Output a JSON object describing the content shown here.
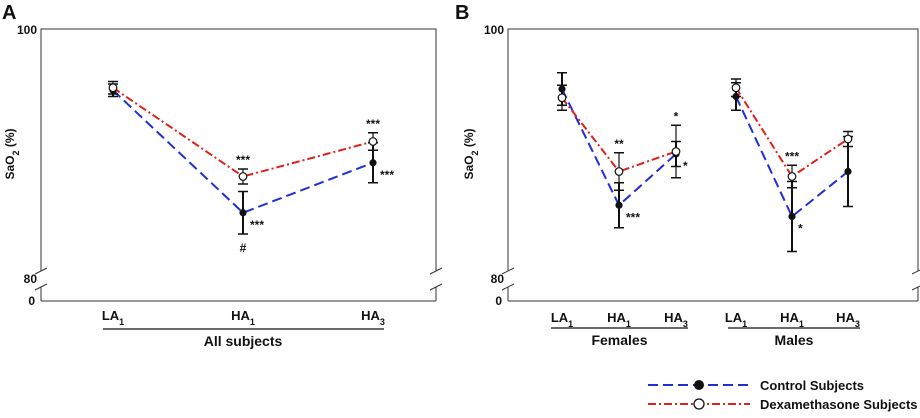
{
  "colors": {
    "control": "#1f2fd6",
    "dexamethasone": "#e0201b",
    "axis": "#333333",
    "text": "#111111"
  },
  "legend": {
    "control": "Control Subjects",
    "dexamethasone": "Dexamethasone Subjects"
  },
  "chart_data": [
    {
      "panel": "A",
      "type": "line",
      "ylabel_base": "SaO",
      "ylabel_sub": "2",
      "ylabel_tail": " (%)",
      "yticks": [
        "100",
        "80",
        "0"
      ],
      "ylim": [
        80,
        100
      ],
      "axis_break": true,
      "categories": [
        {
          "base": "LA",
          "sub": "1"
        },
        {
          "base": "HA",
          "sub": "1"
        },
        {
          "base": "HA",
          "sub": "3"
        }
      ],
      "group_label": "All subjects",
      "series": [
        {
          "name": "Control Subjects",
          "key": "control",
          "values": [
            95.1,
            85.3,
            89.3
          ],
          "err": [
            0.5,
            1.7,
            1.6
          ],
          "annotations": [
            {
              "index": 1,
              "text": "***",
              "pos": "right"
            },
            {
              "index": 1,
              "text": "#",
              "pos": "below"
            },
            {
              "index": 2,
              "text": "***",
              "pos": "right"
            }
          ]
        },
        {
          "name": "Dexamethasone Subjects",
          "key": "dexamethasone",
          "values": [
            95.3,
            88.2,
            91.0
          ],
          "err": [
            0.5,
            0.6,
            0.7
          ],
          "annotations": [
            {
              "index": 1,
              "text": "***",
              "pos": "above"
            },
            {
              "index": 2,
              "text": "***",
              "pos": "above"
            }
          ]
        }
      ]
    },
    {
      "panel": "B",
      "type": "line",
      "ylabel_base": "SaO",
      "ylabel_sub": "2",
      "ylabel_tail": " (%)",
      "yticks": [
        "100",
        "80",
        "0"
      ],
      "ylim": [
        80,
        100
      ],
      "axis_break": true,
      "groups": [
        {
          "label": "Females",
          "categories": [
            {
              "base": "LA",
              "sub": "1"
            },
            {
              "base": "HA",
              "sub": "1"
            },
            {
              "base": "HA",
              "sub": "3"
            }
          ],
          "series": [
            {
              "name": "Control Subjects",
              "key": "control",
              "values": [
                95.2,
                85.9,
                90.0
              ],
              "err": [
                1.3,
                1.8,
                1.0
              ],
              "annotations": [
                {
                  "index": 1,
                  "text": "***",
                  "pos": "right"
                },
                {
                  "index": 2,
                  "text": "*",
                  "pos": "right"
                }
              ]
            },
            {
              "name": "Dexamethasone Subjects",
              "key": "dexamethasone",
              "values": [
                94.5,
                88.6,
                90.2
              ],
              "err": [
                1.0,
                1.5,
                2.1
              ],
              "annotations": [
                {
                  "index": 1,
                  "text": "**",
                  "pos": "above"
                },
                {
                  "index": 2,
                  "text": "*",
                  "pos": "above"
                }
              ]
            }
          ]
        },
        {
          "label": "Males",
          "categories": [
            {
              "base": "LA",
              "sub": "1"
            },
            {
              "base": "HA",
              "sub": "1"
            },
            {
              "base": "HA",
              "sub": "3"
            }
          ],
          "series": [
            {
              "name": "Control Subjects",
              "key": "control",
              "values": [
                94.6,
                85.0,
                88.6
              ],
              "err": [
                1.1,
                2.8,
                2.8
              ],
              "annotations": [
                {
                  "index": 1,
                  "text": "*",
                  "pos": "below-right"
                }
              ]
            },
            {
              "name": "Dexamethasone Subjects",
              "key": "dexamethasone",
              "values": [
                95.3,
                88.2,
                91.2
              ],
              "err": [
                0.7,
                0.9,
                0.6
              ],
              "annotations": [
                {
                  "index": 1,
                  "text": "***",
                  "pos": "above"
                }
              ]
            }
          ]
        }
      ]
    }
  ]
}
